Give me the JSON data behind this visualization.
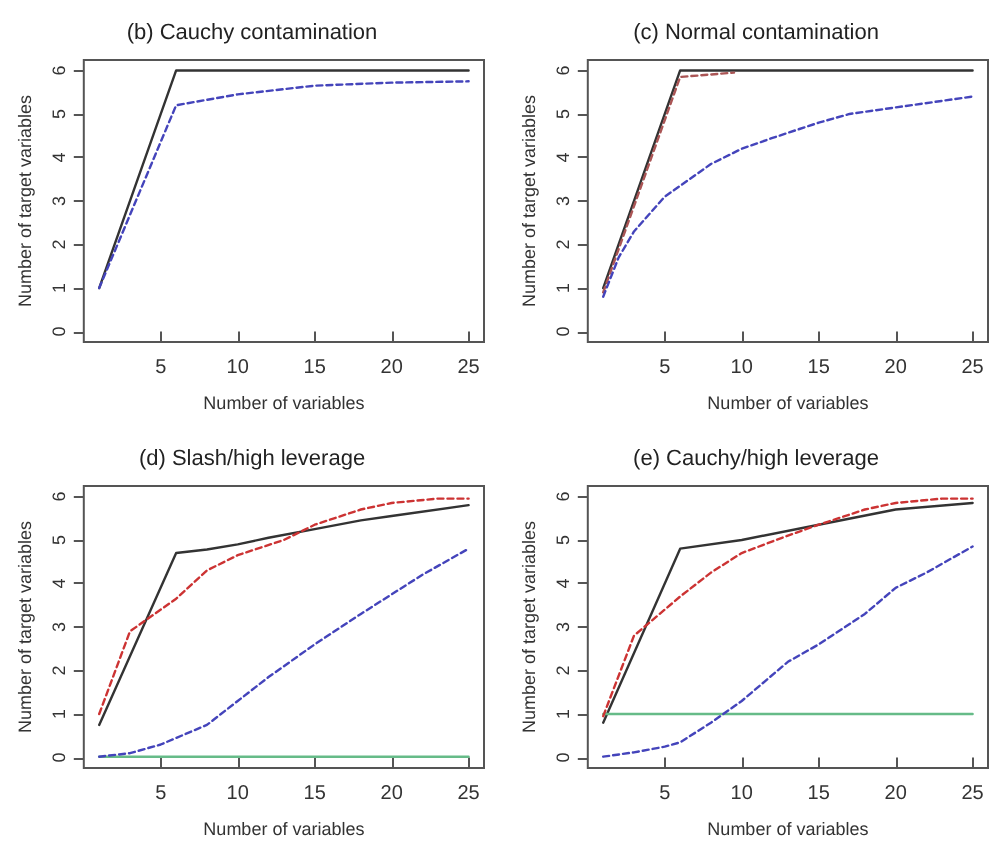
{
  "chart_data": [
    {
      "type": "line",
      "title": "(b) Cauchy contamination",
      "xlabel": "Number of variables",
      "ylabel": "Number of target variables",
      "xlim": [
        0,
        26
      ],
      "xticks": [
        5,
        10,
        15,
        20,
        25
      ],
      "ylim": [
        -0.24,
        6.24
      ],
      "yticks": [
        0,
        1,
        2,
        3,
        4,
        5,
        6
      ],
      "grid": false,
      "marker": "none",
      "series": [
        {
          "color": "#333333",
          "line_style": "solid",
          "x": [
            1,
            6,
            25
          ],
          "values": [
            1,
            6,
            6
          ]
        },
        {
          "color": "#4444bb",
          "line_style": "dashed",
          "x": [
            1,
            6,
            10,
            15,
            20,
            25
          ],
          "values": [
            1,
            5.2,
            5.45,
            5.65,
            5.72,
            5.75
          ]
        }
      ]
    },
    {
      "type": "line",
      "title": "(c) Normal contamination",
      "xlabel": "Number of variables",
      "ylabel": "Number of target variables",
      "xlim": [
        0,
        26
      ],
      "xticks": [
        5,
        10,
        15,
        20,
        25
      ],
      "ylim": [
        -0.24,
        6.24
      ],
      "yticks": [
        0,
        1,
        2,
        3,
        4,
        5,
        6
      ],
      "grid": false,
      "marker": "none",
      "series": [
        {
          "color": "#333333",
          "line_style": "solid",
          "x": [
            1,
            6,
            25
          ],
          "values": [
            1,
            6,
            6
          ]
        },
        {
          "color": "#aa5555",
          "line_style": "dashed",
          "x": [
            1,
            6,
            9.5
          ],
          "values": [
            0.9,
            5.85,
            5.95
          ]
        },
        {
          "color": "#4444bb",
          "line_style": "dashed",
          "x": [
            1,
            2,
            3,
            5,
            6,
            8,
            10,
            12,
            15,
            17,
            20,
            25
          ],
          "values": [
            0.8,
            1.7,
            2.3,
            3.1,
            3.35,
            3.85,
            4.2,
            4.45,
            4.8,
            5,
            5.15,
            5.4
          ]
        }
      ]
    },
    {
      "type": "line",
      "title": "(d) Slash/high leverage",
      "xlabel": "Number of variables",
      "ylabel": "Number of target variables",
      "xlim": [
        0,
        26
      ],
      "xticks": [
        5,
        10,
        15,
        20,
        25
      ],
      "ylim": [
        -0.24,
        6.24
      ],
      "yticks": [
        0,
        1,
        2,
        3,
        4,
        5,
        6
      ],
      "grid": false,
      "marker": "none",
      "series": [
        {
          "color": "#333333",
          "line_style": "solid",
          "x": [
            1,
            6,
            8,
            10,
            12,
            15,
            18,
            20,
            25
          ],
          "values": [
            0.75,
            4.7,
            4.78,
            4.9,
            5.05,
            5.25,
            5.45,
            5.55,
            5.8
          ]
        },
        {
          "color": "#cc3333",
          "line_style": "dashed",
          "x": [
            1,
            3,
            6,
            8,
            10,
            13,
            15,
            18,
            20,
            23,
            25
          ],
          "values": [
            1,
            2.9,
            3.65,
            4.3,
            4.65,
            5,
            5.35,
            5.7,
            5.85,
            5.95,
            5.95
          ]
        },
        {
          "color": "#4444bb",
          "line_style": "dashed",
          "x": [
            1,
            3,
            5,
            8,
            10,
            12,
            15,
            18,
            20,
            22,
            25
          ],
          "values": [
            0.02,
            0.1,
            0.3,
            0.75,
            1.3,
            1.85,
            2.6,
            3.3,
            3.75,
            4.2,
            4.8
          ]
        },
        {
          "color": "#66bb88",
          "line_style": "solid",
          "x": [
            1,
            25
          ],
          "values": [
            0.02,
            0.02
          ]
        }
      ]
    },
    {
      "type": "line",
      "title": "(e) Cauchy/high leverage",
      "xlabel": "Number of variables",
      "ylabel": "Number of target variables",
      "xlim": [
        0,
        26
      ],
      "xticks": [
        5,
        10,
        15,
        20,
        25
      ],
      "ylim": [
        -0.24,
        6.24
      ],
      "yticks": [
        0,
        1,
        2,
        3,
        4,
        5,
        6
      ],
      "grid": false,
      "marker": "none",
      "series": [
        {
          "color": "#333333",
          "line_style": "solid",
          "x": [
            1,
            6,
            10,
            15,
            20,
            25
          ],
          "values": [
            0.8,
            4.8,
            5,
            5.35,
            5.7,
            5.85
          ]
        },
        {
          "color": "#cc3333",
          "line_style": "dashed",
          "x": [
            1,
            3,
            6,
            8,
            10,
            13,
            15,
            18,
            20,
            23,
            25
          ],
          "values": [
            0.95,
            2.8,
            3.7,
            4.25,
            4.7,
            5.1,
            5.35,
            5.7,
            5.85,
            5.95,
            5.95
          ]
        },
        {
          "color": "#4444bb",
          "line_style": "dashed",
          "x": [
            1,
            3,
            5,
            6,
            8,
            10,
            13,
            15,
            18,
            20,
            22,
            25
          ],
          "values": [
            0.02,
            0.12,
            0.25,
            0.35,
            0.8,
            1.3,
            2.2,
            2.6,
            3.3,
            3.9,
            4.25,
            4.85
          ]
        },
        {
          "color": "#66bb88",
          "line_style": "solid",
          "x": [
            1,
            25
          ],
          "values": [
            1,
            1
          ]
        }
      ]
    }
  ]
}
